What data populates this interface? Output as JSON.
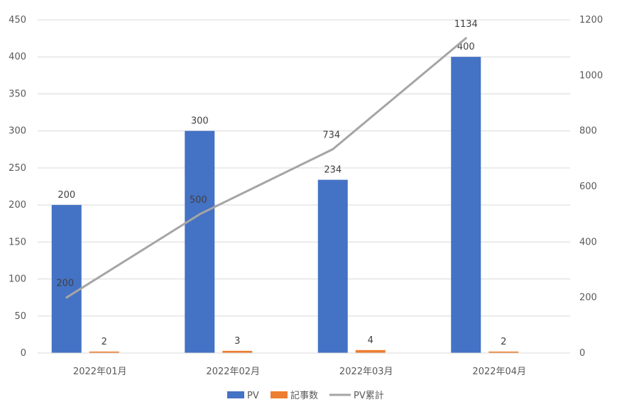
{
  "chart_data": {
    "type": "bar",
    "title": "",
    "xlabel": "",
    "ylabel": "",
    "y2label": "",
    "categories": [
      "2022年01月",
      "2022年02月",
      "2022年03月",
      "2022年04月"
    ],
    "ylim": [
      0,
      450
    ],
    "y_ticks": [
      0,
      50,
      100,
      150,
      200,
      250,
      300,
      350,
      400,
      450
    ],
    "y2lim": [
      0,
      1200
    ],
    "y2_ticks": [
      0,
      200,
      400,
      600,
      800,
      1000,
      1200
    ],
    "grid": true,
    "legend_position": "bottom-center",
    "series": [
      {
        "name": "PV",
        "type": "bar",
        "axis": "left",
        "color": "#4472C4",
        "values": [
          200,
          300,
          234,
          400
        ]
      },
      {
        "name": "記事数",
        "type": "bar",
        "axis": "left",
        "color": "#ED7D31",
        "values": [
          2,
          3,
          4,
          2
        ]
      },
      {
        "name": "PV累計",
        "type": "line",
        "axis": "right",
        "color": "#A5A5A5",
        "values": [
          200,
          500,
          734,
          1134
        ]
      }
    ]
  }
}
